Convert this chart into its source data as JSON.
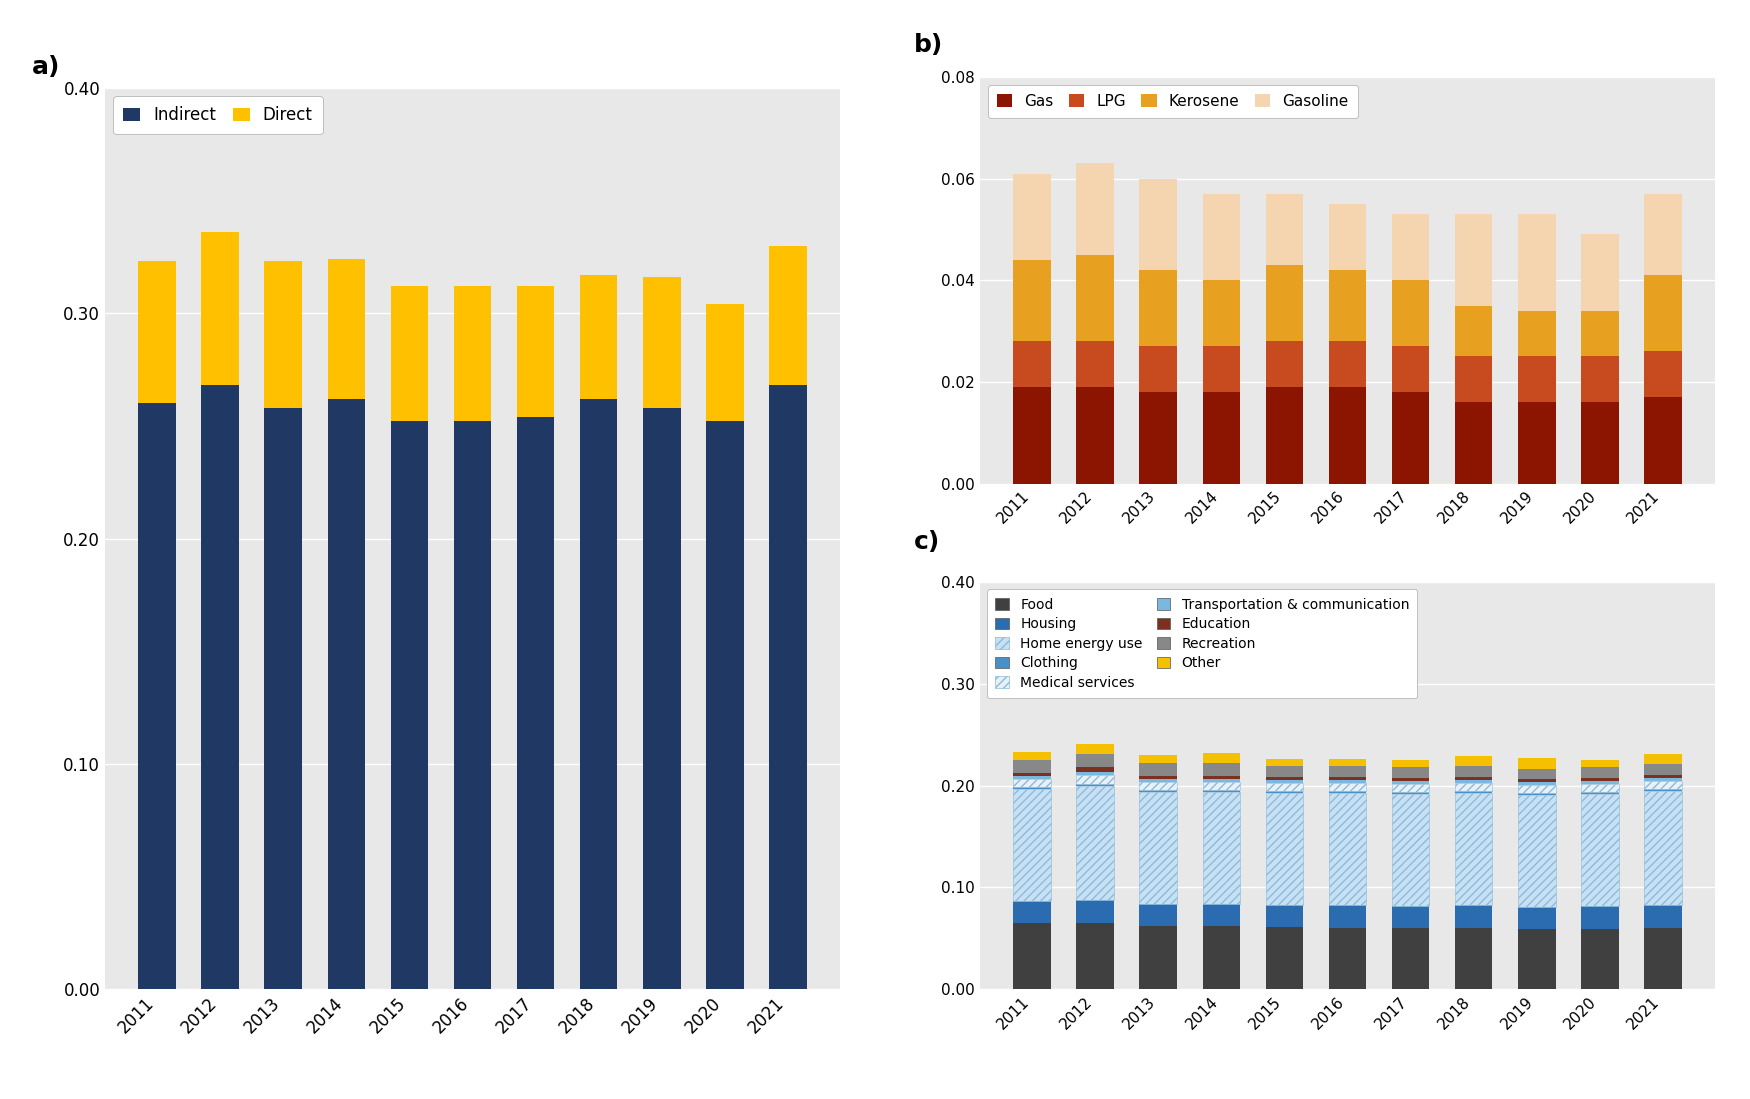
{
  "years": [
    2011,
    2012,
    2013,
    2014,
    2015,
    2016,
    2017,
    2018,
    2019,
    2020,
    2021
  ],
  "a_indirect": [
    0.26,
    0.268,
    0.258,
    0.262,
    0.252,
    0.252,
    0.254,
    0.262,
    0.258,
    0.252,
    0.268
  ],
  "a_direct": [
    0.063,
    0.068,
    0.065,
    0.062,
    0.06,
    0.06,
    0.058,
    0.055,
    0.058,
    0.052,
    0.062
  ],
  "a_color_indirect": "#1F3864",
  "a_color_direct": "#FFC000",
  "a_ylim": [
    0,
    0.4
  ],
  "a_yticks": [
    0.0,
    0.1,
    0.2,
    0.3,
    0.4
  ],
  "b_gas": [
    0.019,
    0.019,
    0.018,
    0.018,
    0.019,
    0.019,
    0.018,
    0.016,
    0.016,
    0.016,
    0.017
  ],
  "b_lpg": [
    0.009,
    0.009,
    0.009,
    0.009,
    0.009,
    0.009,
    0.009,
    0.009,
    0.009,
    0.009,
    0.009
  ],
  "b_kerosene": [
    0.016,
    0.017,
    0.015,
    0.013,
    0.015,
    0.014,
    0.013,
    0.01,
    0.009,
    0.009,
    0.015
  ],
  "b_gasoline": [
    0.017,
    0.018,
    0.018,
    0.017,
    0.014,
    0.013,
    0.013,
    0.018,
    0.019,
    0.015,
    0.016
  ],
  "b_color_gas": "#8B1500",
  "b_color_lpg": "#C84B20",
  "b_color_kerosene": "#E8A020",
  "b_color_gasoline": "#F5D5B0",
  "b_ylim": [
    0,
    0.08
  ],
  "b_yticks": [
    0.0,
    0.02,
    0.04,
    0.06,
    0.08
  ],
  "c_food": [
    0.065,
    0.065,
    0.062,
    0.062,
    0.061,
    0.06,
    0.06,
    0.06,
    0.059,
    0.059,
    0.06
  ],
  "c_housing": [
    0.022,
    0.023,
    0.022,
    0.022,
    0.022,
    0.023,
    0.022,
    0.023,
    0.022,
    0.023,
    0.023
  ],
  "c_homeenergy": [
    0.11,
    0.112,
    0.11,
    0.11,
    0.11,
    0.11,
    0.11,
    0.11,
    0.11,
    0.11,
    0.112
  ],
  "c_clothing": [
    0.002,
    0.002,
    0.002,
    0.002,
    0.002,
    0.002,
    0.002,
    0.002,
    0.002,
    0.002,
    0.002
  ],
  "c_medical": [
    0.008,
    0.009,
    0.008,
    0.008,
    0.008,
    0.008,
    0.008,
    0.008,
    0.008,
    0.008,
    0.008
  ],
  "c_transport": [
    0.003,
    0.003,
    0.003,
    0.003,
    0.003,
    0.003,
    0.003,
    0.003,
    0.003,
    0.003,
    0.003
  ],
  "c_education": [
    0.003,
    0.004,
    0.003,
    0.003,
    0.003,
    0.003,
    0.003,
    0.003,
    0.003,
    0.003,
    0.003
  ],
  "c_recreation": [
    0.012,
    0.013,
    0.012,
    0.012,
    0.01,
    0.01,
    0.01,
    0.01,
    0.01,
    0.01,
    0.01
  ],
  "c_other": [
    0.008,
    0.01,
    0.008,
    0.01,
    0.007,
    0.007,
    0.007,
    0.01,
    0.01,
    0.007,
    0.01
  ],
  "c_color_food": "#404040",
  "c_color_housing": "#2B6CB0",
  "c_color_homeenergy": "#C8E0F4",
  "c_color_clothing": "#4A90C8",
  "c_color_medical": "#E8F0F8",
  "c_color_transport": "#7BB8E0",
  "c_color_education": "#7B3020",
  "c_color_recreation": "#888888",
  "c_color_other": "#F5C000",
  "c_ylim": [
    0,
    0.4
  ],
  "c_yticks": [
    0.0,
    0.1,
    0.2,
    0.3,
    0.4
  ],
  "bg_color": "#FFFFFF",
  "plot_bg": "#E8E8E8"
}
